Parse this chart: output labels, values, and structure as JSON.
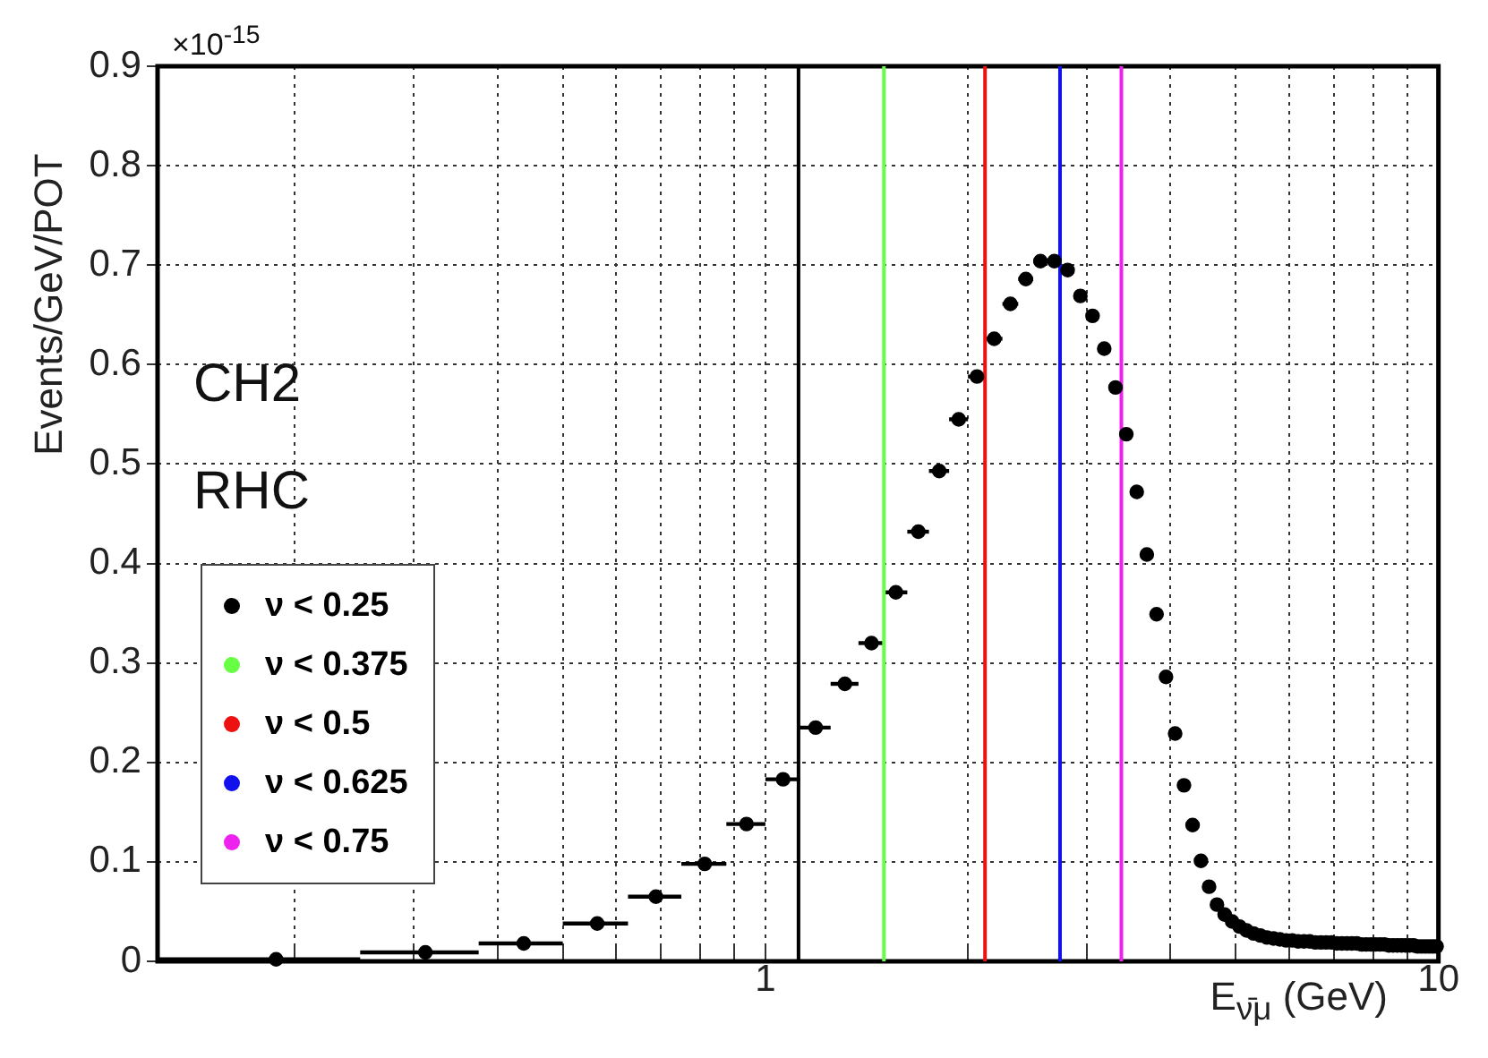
{
  "chart_data": {
    "type": "scatter",
    "ylabel": "Events/GeV/POT",
    "xlabel": "E$_{ν̄μ}$ (GeV)",
    "annotations": [
      "×10$^{-15}$",
      "CH2",
      "RHC"
    ],
    "x": [
      0.1875,
      0.3125,
      0.4375,
      0.5625,
      0.6875,
      0.8125,
      0.9375,
      1.0625,
      1.1875,
      1.3125,
      1.4375,
      1.5625,
      1.6875,
      1.8125,
      1.9375,
      2.0625,
      2.1875,
      2.3125,
      2.4375,
      2.5625,
      2.6875,
      2.8125,
      2.9375,
      3.0625,
      3.1875,
      3.3125,
      3.4375,
      3.5625,
      3.6875,
      3.8125,
      3.9375,
      4.0625,
      4.1875,
      4.3125,
      4.4375,
      4.5625,
      4.6875,
      4.8125,
      4.9375,
      5.0625,
      5.1875,
      5.3125,
      5.4375,
      5.5625,
      5.6875,
      5.8125,
      5.9375,
      6.0625,
      6.1875,
      6.3125,
      6.4375,
      6.5625,
      6.6875,
      6.8125,
      6.9375,
      7.0625,
      7.1875,
      7.3125,
      7.4375,
      7.5625,
      7.6875,
      7.8125,
      7.9375,
      8.0625,
      8.1875,
      8.3125,
      8.4375,
      8.5625,
      8.6875,
      8.8125,
      8.9375,
      9.0625,
      9.1875,
      9.3125,
      9.4375,
      9.5625,
      9.6875,
      9.8125,
      9.9375
    ],
    "series": [
      {
        "color": "#000000",
        "values": [
          0.002,
          0.009,
          0.018,
          0.038,
          0.065,
          0.098,
          0.138,
          0.183,
          0.235,
          0.279,
          0.32,
          0.371,
          0.432,
          0.493,
          0.545,
          0.588,
          0.626,
          0.661,
          0.686,
          0.704,
          0.704,
          0.695,
          0.669,
          0.649,
          0.616,
          0.577,
          0.53,
          0.472,
          0.409,
          0.349,
          0.286,
          0.229,
          0.177,
          0.137,
          0.101,
          0.075,
          0.057,
          0.047,
          0.04,
          0.035,
          0.031,
          0.028,
          0.026,
          0.024,
          0.023,
          0.022,
          0.021,
          0.021,
          0.02,
          0.02,
          0.02,
          0.019,
          0.019,
          0.019,
          0.019,
          0.018,
          0.018,
          0.018,
          0.018,
          0.018,
          0.017,
          0.017,
          0.017,
          0.017,
          0.017,
          0.017,
          0.016,
          0.016,
          0.016,
          0.016,
          0.016,
          0.016,
          0.016,
          0.015,
          0.015,
          0.015,
          0.015,
          0.015,
          0.015
        ],
        "xerrors": [
          0.0625,
          0.0625,
          0.0625,
          0.0625,
          0.0625,
          0.0625,
          0.0625,
          0.0625,
          0.0625,
          0.0625,
          0.0625,
          0.0625,
          0.0625,
          0.0625,
          0.0625,
          0.0625,
          0.0625,
          0.0625,
          0.0625,
          0.0625,
          0.0625,
          0.0625,
          0.0625,
          0.0625,
          0.0625,
          0.0625,
          0.0625,
          0.0625,
          0.0625,
          0.0625,
          0.0625,
          0.0625,
          0.0625,
          0.0625,
          0.0625,
          0.0625,
          0.0625,
          0.0625,
          0.0625,
          0.0625,
          0.0625,
          0.0625,
          0.0625,
          0.0625,
          0.0625,
          0.0625,
          0.0625,
          0.0625,
          0.0625,
          0.0625,
          0.0625,
          0.0625,
          0.0625,
          0.0625,
          0.0625,
          0.0625,
          0.0625,
          0.0625,
          0.0625,
          0.0625,
          0.0625,
          0.0625,
          0.0625,
          0.0625,
          0.0625,
          0.0625,
          0.0625,
          0.0625,
          0.0625,
          0.0625,
          0.0625,
          0.0625,
          0.0625,
          0.0625,
          0.0625,
          0.0625,
          0.0625,
          0.0625,
          0.0625
        ]
      },
      {
        "type": "line",
        "marker": "none",
        "name": "ν < 0.25",
        "color": "#000000",
        "x": [
          1.12,
          1.12
        ],
        "values": [
          0,
          0.9
        ]
      },
      {
        "type": "line",
        "marker": "none",
        "name": "ν < 0.375",
        "color": "#66ff44",
        "x": [
          1.5,
          1.5
        ],
        "values": [
          0,
          0.9
        ]
      },
      {
        "type": "line",
        "marker": "none",
        "name": "ν < 0.5",
        "color": "#ee1111",
        "x": [
          2.12,
          2.12
        ],
        "values": [
          0,
          0.9
        ]
      },
      {
        "type": "line",
        "marker": "none",
        "name": "ν < 0.625",
        "color": "#1111ee",
        "x": [
          2.74,
          2.74
        ],
        "values": [
          0,
          0.9
        ]
      },
      {
        "type": "line",
        "marker": "none",
        "name": "ν < 0.75",
        "color": "#ee22ee",
        "x": [
          3.38,
          3.38
        ],
        "values": [
          0,
          0.9
        ]
      }
    ],
    "log": "x",
    "xlim": [
      0.125,
      10
    ],
    "xticks": [
      {
        "value": 0.2,
        "label": null
      },
      {
        "value": 0.3,
        "label": null
      },
      {
        "value": 0.4,
        "label": null
      },
      {
        "value": 0.5,
        "label": null
      },
      {
        "value": 0.6,
        "label": null
      },
      {
        "value": 0.7,
        "label": null
      },
      {
        "value": 0.8,
        "label": null
      },
      {
        "value": 0.9,
        "label": null
      },
      1,
      {
        "value": 2,
        "label": null
      },
      {
        "value": 3,
        "label": null
      },
      {
        "value": 4,
        "label": null
      },
      {
        "value": 5,
        "label": null
      },
      {
        "value": 6,
        "label": null
      },
      {
        "value": 7,
        "label": null
      },
      {
        "value": 8,
        "label": null
      },
      {
        "value": 9,
        "label": null
      },
      10
    ],
    "ylim": [
      0,
      0.9
    ],
    "yticks": [
      0,
      0.1,
      0.2,
      0.3,
      0.4,
      0.5,
      0.6,
      0.7,
      0.8,
      0.9
    ],
    "grid": true,
    "legend": "left",
    "marker": "circle"
  }
}
